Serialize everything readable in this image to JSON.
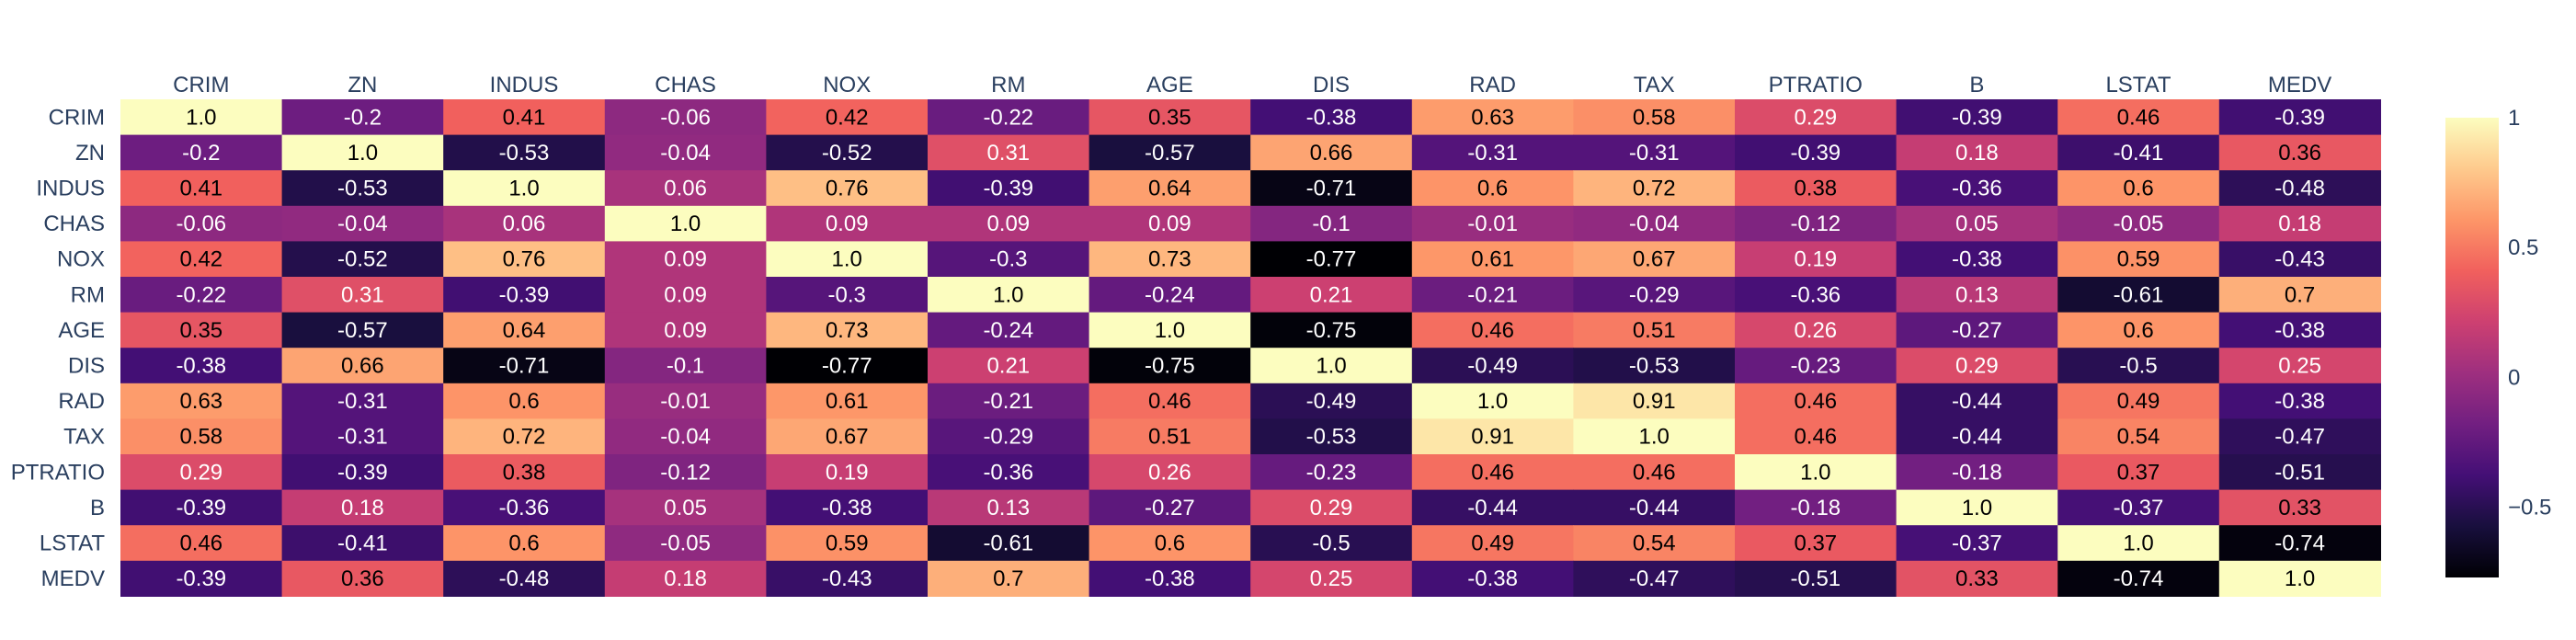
{
  "chart_data": {
    "type": "heatmap",
    "title": "",
    "variables": [
      "CRIM",
      "ZN",
      "INDUS",
      "CHAS",
      "NOX",
      "RM",
      "AGE",
      "DIS",
      "RAD",
      "TAX",
      "PTRATIO",
      "B",
      "LSTAT",
      "MEDV"
    ],
    "values": [
      [
        "1.0",
        "-0.2",
        "0.41",
        "-0.06",
        "0.42",
        "-0.22",
        "0.35",
        "-0.38",
        "0.63",
        "0.58",
        "0.29",
        "-0.39",
        "0.46",
        "-0.39"
      ],
      [
        "-0.2",
        "1.0",
        "-0.53",
        "-0.04",
        "-0.52",
        "0.31",
        "-0.57",
        "0.66",
        "-0.31",
        "-0.31",
        "-0.39",
        "0.18",
        "-0.41",
        "0.36"
      ],
      [
        "0.41",
        "-0.53",
        "1.0",
        "0.06",
        "0.76",
        "-0.39",
        "0.64",
        "-0.71",
        "0.6",
        "0.72",
        "0.38",
        "-0.36",
        "0.6",
        "-0.48"
      ],
      [
        "-0.06",
        "-0.04",
        "0.06",
        "1.0",
        "0.09",
        "0.09",
        "0.09",
        "-0.1",
        "-0.01",
        "-0.04",
        "-0.12",
        "0.05",
        "-0.05",
        "0.18"
      ],
      [
        "0.42",
        "-0.52",
        "0.76",
        "0.09",
        "1.0",
        "-0.3",
        "0.73",
        "-0.77",
        "0.61",
        "0.67",
        "0.19",
        "-0.38",
        "0.59",
        "-0.43"
      ],
      [
        "-0.22",
        "0.31",
        "-0.39",
        "0.09",
        "-0.3",
        "1.0",
        "-0.24",
        "0.21",
        "-0.21",
        "-0.29",
        "-0.36",
        "0.13",
        "-0.61",
        "0.7"
      ],
      [
        "0.35",
        "-0.57",
        "0.64",
        "0.09",
        "0.73",
        "-0.24",
        "1.0",
        "-0.75",
        "0.46",
        "0.51",
        "0.26",
        "-0.27",
        "0.6",
        "-0.38"
      ],
      [
        "-0.38",
        "0.66",
        "-0.71",
        "-0.1",
        "-0.77",
        "0.21",
        "-0.75",
        "1.0",
        "-0.49",
        "-0.53",
        "-0.23",
        "0.29",
        "-0.5",
        "0.25"
      ],
      [
        "0.63",
        "-0.31",
        "0.6",
        "-0.01",
        "0.61",
        "-0.21",
        "0.46",
        "-0.49",
        "1.0",
        "0.91",
        "0.46",
        "-0.44",
        "0.49",
        "-0.38"
      ],
      [
        "0.58",
        "-0.31",
        "0.72",
        "-0.04",
        "0.67",
        "-0.29",
        "0.51",
        "-0.53",
        "0.91",
        "1.0",
        "0.46",
        "-0.44",
        "0.54",
        "-0.47"
      ],
      [
        "0.29",
        "-0.39",
        "0.38",
        "-0.12",
        "0.19",
        "-0.36",
        "0.26",
        "-0.23",
        "0.46",
        "0.46",
        "1.0",
        "-0.18",
        "0.37",
        "-0.51"
      ],
      [
        "-0.39",
        "0.18",
        "-0.36",
        "0.05",
        "-0.38",
        "0.13",
        "-0.27",
        "0.29",
        "-0.44",
        "-0.44",
        "-0.18",
        "1.0",
        "-0.37",
        "0.33"
      ],
      [
        "0.46",
        "-0.41",
        "0.6",
        "-0.05",
        "0.59",
        "-0.61",
        "0.6",
        "-0.5",
        "0.49",
        "0.54",
        "0.37",
        "-0.37",
        "1.0",
        "-0.74"
      ],
      [
        "-0.39",
        "0.36",
        "-0.48",
        "0.18",
        "-0.43",
        "0.7",
        "-0.38",
        "0.25",
        "-0.38",
        "-0.47",
        "-0.51",
        "0.33",
        "-0.74",
        "1.0"
      ]
    ],
    "colorscale": "magma",
    "zrange": [
      -0.77,
      1.0
    ],
    "colorbar": {
      "ticks": [
        1,
        0.5,
        0,
        -0.5
      ],
      "tick_labels": [
        "1",
        "0.5",
        "0",
        "−0.5"
      ]
    },
    "x_axis_position": "top",
    "grid": false
  }
}
